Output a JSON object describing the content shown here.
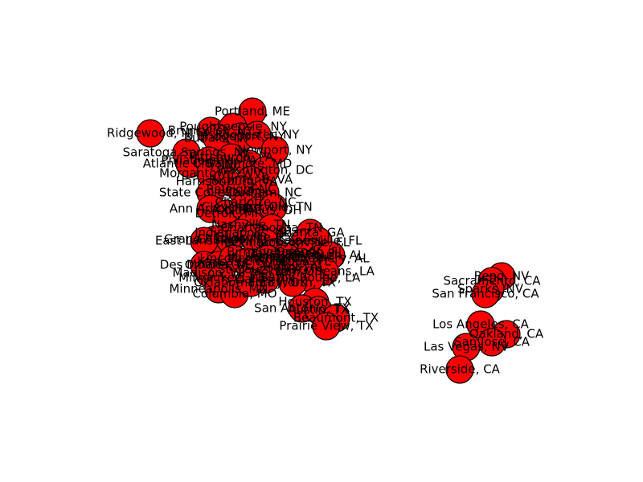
{
  "colors": {
    "node_fill": "#ff0000",
    "node_stroke": "#000000",
    "label": "#000000",
    "background": "#ffffff"
  },
  "nodes": [
    "Portland, ME",
    "Ridgewood, NJ",
    "Brunswick, NY",
    "Poughkeepsie, NY",
    "Buffalo, NY",
    "Bridgeport, NY",
    "Rochester, NY",
    "Saratoga Springs, NY",
    "Newport, NY",
    "Atlantic City, NJ",
    "Philadelphia, PA",
    "Pittsburgh, PA",
    "Baltimore, MD",
    "Washington, DC",
    "Morgantown, WV",
    "Harrisonburg, VA",
    "Richmond, VA",
    "State College, PA",
    "Raleigh, NC",
    "Durham, NC",
    "Charlotte, NC",
    "Ann Arbor, MI",
    "Detroit, MI",
    "Cleveland, OH",
    "Columbus, OH",
    "Knoxville, TN",
    "Nashville, TN",
    "Chattanooga, TN",
    "Atlanta, GA",
    "Grand Rapids, MI",
    "East Lansing, MI",
    "Chicago, IL",
    "Indianapolis, IN",
    "Louisville, KY",
    "Lexington, KY",
    "Jacksonville, FL",
    "Gainesville, FL",
    "Tallahassee, FL",
    "Orlando, FL",
    "Tampa, FL",
    "Birmingham, AL",
    "Huntsville, AL",
    "Montgomery, AL",
    "Auburn, AL",
    "Mobile, AL",
    "New Orleans, LA",
    "Baton Rouge, LA",
    "Jackson, MS",
    "Memphis, TN",
    "Des Moines, IA",
    "Omaha, NE",
    "Lincoln, NE",
    "Kansas City, MO",
    "St. Louis, MO",
    "Madison, WI",
    "Milwaukee, WI",
    "Minneapolis, MN",
    "Columbia, MO",
    "Dallas, TX",
    "Fort Worth, TX",
    "Oklahoma City, OK",
    "Houston, TX",
    "San Antonio, TX",
    "Austin, TX",
    "Beaumont, TX",
    "Prairie View, TX",
    "Reno, NV",
    "Sacramento, CA",
    "Sparks, NV",
    "San Francisco, CA",
    "Oakland, CA",
    "Los Angeles, CA",
    "San Jose, CA",
    "Las Vegas, NV",
    "Riverside, CA"
  ]
}
